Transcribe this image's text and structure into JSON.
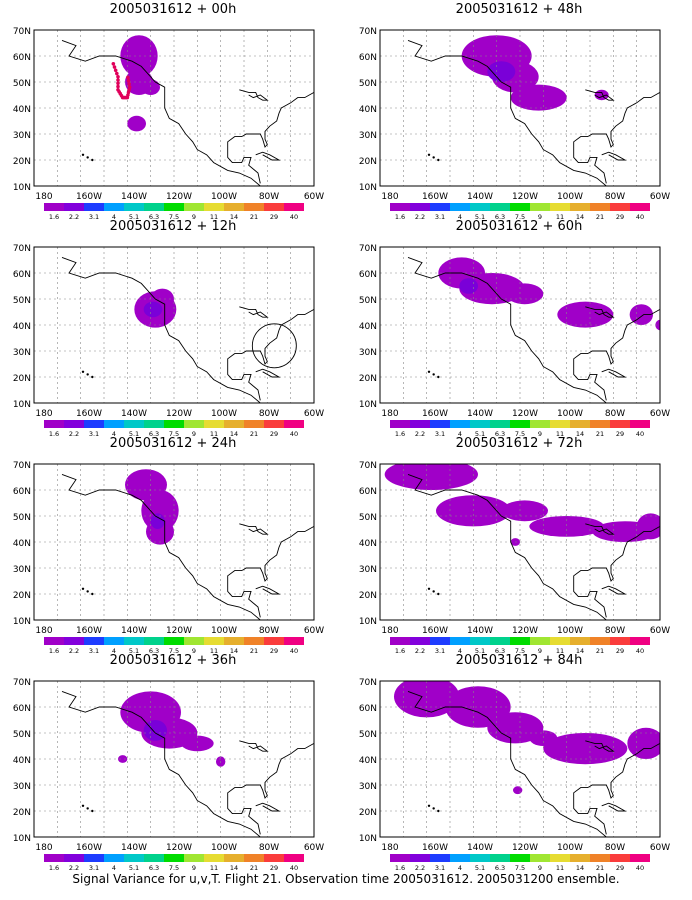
{
  "map": {
    "lat_labels": [
      "70N",
      "60N",
      "50N",
      "40N",
      "30N",
      "20N",
      "10N"
    ],
    "lon_labels": [
      "180",
      "160W",
      "140W",
      "120W",
      "100W",
      "80W",
      "60W"
    ],
    "colorbar": {
      "labels": [
        "1.6",
        "2.2",
        "3.1",
        "4",
        "5.1",
        "6.3",
        "7.5",
        "9",
        "11",
        "14",
        "21",
        "29",
        "40"
      ],
      "colors": [
        "#a000c8",
        "#8200dc",
        "#1e3cff",
        "#00a0ff",
        "#00c8c8",
        "#00d28c",
        "#00dc00",
        "#a0e632",
        "#e6dc32",
        "#e6af2d",
        "#f08228",
        "#fa3c3c",
        "#f00082"
      ]
    }
  },
  "panels": [
    {
      "title": "2005031612 + 00h",
      "blobs": [
        [
          135,
          60,
          8,
          8
        ],
        [
          135,
          50,
          6,
          5
        ],
        [
          130,
          48,
          4,
          3
        ],
        [
          136,
          34,
          4,
          3
        ]
      ],
      "dark": [],
      "dots": true,
      "circle": false
    },
    {
      "title": "2005031612 + 12h",
      "blobs": [
        [
          128,
          46,
          9,
          7
        ],
        [
          125,
          50,
          5,
          4
        ]
      ],
      "dark": [
        [
          129,
          46,
          4,
          3
        ]
      ],
      "dots": false,
      "circle": true
    },
    {
      "title": "2005031612 + 24h",
      "blobs": [
        [
          132,
          62,
          9,
          6
        ],
        [
          126,
          52,
          8,
          8
        ],
        [
          126,
          44,
          6,
          5
        ]
      ],
      "dark": [
        [
          127,
          48,
          3,
          3
        ]
      ],
      "dots": false,
      "circle": false
    },
    {
      "title": "2005031612 + 36h",
      "blobs": [
        [
          130,
          58,
          13,
          8
        ],
        [
          122,
          50,
          12,
          6
        ],
        [
          110,
          46,
          7,
          3
        ],
        [
          142,
          40,
          2,
          1.5
        ],
        [
          100,
          39,
          2,
          2
        ]
      ],
      "dark": [
        [
          128,
          51,
          5,
          4
        ]
      ],
      "dots": false,
      "circle": false
    },
    {
      "title": "2005031612 + 48h",
      "blobs": [
        [
          130,
          60,
          15,
          8
        ],
        [
          122,
          52,
          10,
          6
        ],
        [
          112,
          44,
          12,
          5
        ],
        [
          85,
          45,
          3,
          2
        ]
      ],
      "dark": [
        [
          128,
          54,
          6,
          4
        ]
      ],
      "dots": false,
      "circle": false
    },
    {
      "title": "2005031612 + 60h",
      "blobs": [
        [
          145,
          60,
          10,
          6
        ],
        [
          132,
          54,
          14,
          6
        ],
        [
          118,
          52,
          8,
          4
        ],
        [
          92,
          44,
          12,
          5
        ],
        [
          68,
          44,
          5,
          4
        ],
        [
          60,
          40,
          2,
          2
        ]
      ],
      "dark": [
        [
          142,
          55,
          4,
          3
        ]
      ],
      "dots": false,
      "circle": false
    },
    {
      "title": "2005031612 + 72h",
      "blobs": [
        [
          158,
          66,
          20,
          6
        ],
        [
          140,
          52,
          16,
          6
        ],
        [
          118,
          52,
          10,
          4
        ],
        [
          100,
          46,
          16,
          4
        ],
        [
          75,
          44,
          14,
          4
        ],
        [
          64,
          46,
          6,
          5
        ],
        [
          122,
          40,
          2,
          1.5
        ]
      ],
      "dark": [],
      "dots": false,
      "circle": false
    },
    {
      "title": "2005031612 + 84h",
      "blobs": [
        [
          160,
          64,
          14,
          8
        ],
        [
          138,
          60,
          14,
          8
        ],
        [
          122,
          52,
          12,
          6
        ],
        [
          92,
          44,
          18,
          6
        ],
        [
          66,
          46,
          8,
          6
        ],
        [
          110,
          48,
          6,
          3
        ],
        [
          121,
          28,
          2,
          1.5
        ]
      ],
      "dark": [],
      "dots": false,
      "circle": false
    }
  ],
  "footer": "Signal Variance for u,v,T. Flight 21. Observation time 2005031612. 2005031200 ensemble."
}
